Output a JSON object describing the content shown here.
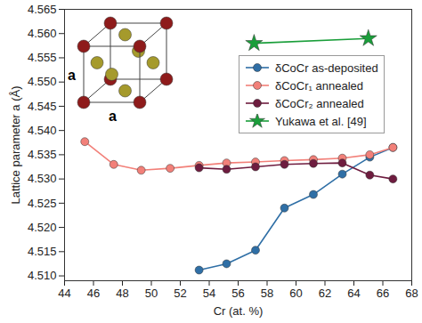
{
  "chart_data": {
    "type": "line",
    "x_label": "Cr (at. %)",
    "y_label": "Lattice parameter a (Å)",
    "xlim": [
      44,
      68
    ],
    "xticks": [
      44,
      46,
      48,
      50,
      52,
      54,
      56,
      58,
      60,
      62,
      64,
      66,
      68
    ],
    "ylim": [
      4.509,
      4.565
    ],
    "yticks": [
      {
        "value": 4.51,
        "label": "4.510"
      },
      {
        "value": 4.515,
        "label": "4.515"
      },
      {
        "value": 4.52,
        "label": "4.520"
      },
      {
        "value": 4.525,
        "label": "4.525"
      },
      {
        "value": 4.53,
        "label": "4.530"
      },
      {
        "value": 4.535,
        "label": "4.535"
      },
      {
        "value": 4.54,
        "label": "4.540"
      },
      {
        "value": 4.545,
        "label": "4.545"
      },
      {
        "value": 4.55,
        "label": "4.550"
      },
      {
        "value": 4.555,
        "label": "4.555"
      },
      {
        "value": 4.56,
        "label": "4.560"
      },
      {
        "value": 4.565,
        "label": "4.565"
      }
    ],
    "legend": "upper right",
    "annotations": [
      "a",
      "a"
    ],
    "series": [
      {
        "name": "δCoCr as-deposited",
        "color": "#2f6fa6",
        "marker": "circle",
        "x": [
          53.3,
          55.2,
          57.2,
          59.2,
          61.2,
          63.2,
          65.1,
          66.7
        ],
        "values": [
          4.5112,
          4.5125,
          4.5153,
          4.524,
          4.5268,
          4.531,
          4.5345,
          4.5365
        ]
      },
      {
        "name": "δCoCr₁ annealed",
        "color": "#f28079",
        "marker": "circle",
        "x": [
          45.4,
          47.4,
          49.3,
          51.3,
          53.3,
          55.2,
          57.2,
          59.2,
          61.2,
          63.2,
          65.1,
          66.7
        ],
        "values": [
          4.5377,
          4.533,
          4.5318,
          4.5322,
          4.5328,
          4.5333,
          4.5335,
          4.5338,
          4.534,
          4.5343,
          4.535,
          4.5365
        ]
      },
      {
        "name": "δCoCr₂ annealed",
        "color": "#6e1c3f",
        "marker": "circle",
        "x": [
          53.3,
          55.2,
          57.2,
          59.2,
          61.2,
          63.2,
          65.1,
          66.7
        ],
        "values": [
          4.5323,
          4.532,
          4.5325,
          4.533,
          4.5332,
          4.5333,
          4.5308,
          4.53
        ]
      },
      {
        "name": "Yukawa et al. [49]",
        "color": "#1a9e3a",
        "marker": "star",
        "x": [
          57.1,
          65.0
        ],
        "values": [
          4.558,
          4.559
        ]
      }
    ]
  }
}
